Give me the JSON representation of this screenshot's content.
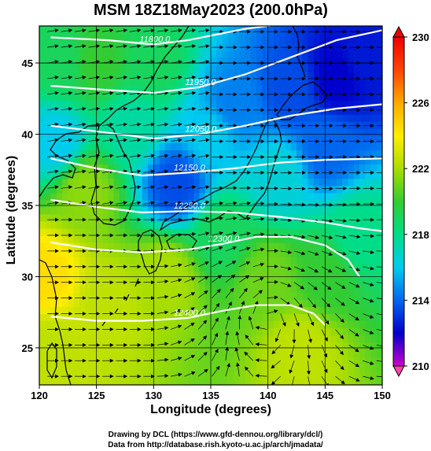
{
  "title": "MSM 18Z18May2023 (200.0hPa)",
  "xlabel": "Longitude (degrees)",
  "ylabel": "Latitude  (degrees)",
  "credit_line1": "Drawing by DCL (https://www.gfd-dennou.org/library/dcl/)",
  "credit_line2": "Data from http://database.rish.kyoto-u.ac.jp/arch/jmadata/",
  "chart_data": {
    "type": "heatmap",
    "x_range": [
      120,
      150
    ],
    "y_range": [
      22.4,
      47.6
    ],
    "x_ticks": [
      120,
      125,
      130,
      135,
      140,
      145,
      150
    ],
    "y_ticks": [
      25,
      30,
      35,
      40,
      45
    ],
    "colorbar": {
      "min": 210,
      "max": 230,
      "ticks": [
        210,
        214,
        218,
        222,
        226,
        230
      ],
      "colors": [
        "#cc00cc",
        "#0000cc",
        "#0066ee",
        "#00ccee",
        "#00dd88",
        "#33cc33",
        "#aadd00",
        "#ffee00",
        "#ffaa00",
        "#ff4400",
        "#ee0000"
      ]
    },
    "contours": [
      {
        "label": "11800.0",
        "points": [
          [
            121,
            46.8
          ],
          [
            126,
            46.6
          ],
          [
            130,
            46.3
          ],
          [
            133,
            46.6
          ],
          [
            138,
            47.4
          ],
          [
            142,
            47.8
          ]
        ]
      },
      {
        "label": "11950.0",
        "points": [
          [
            121,
            43.4
          ],
          [
            126,
            43.1
          ],
          [
            130,
            42.9
          ],
          [
            134,
            43.3
          ],
          [
            138,
            44.2
          ],
          [
            142,
            45.4
          ],
          [
            146,
            46.6
          ],
          [
            150,
            47.3
          ]
        ]
      },
      {
        "label": "12050.0",
        "points": [
          [
            121,
            40.6
          ],
          [
            126,
            40.1
          ],
          [
            130,
            39.7
          ],
          [
            134,
            40.0
          ],
          [
            138,
            40.6
          ],
          [
            142,
            41.3
          ],
          [
            146,
            41.8
          ],
          [
            150,
            42.1
          ]
        ]
      },
      {
        "label": "12150.0",
        "points": [
          [
            121,
            38.3
          ],
          [
            125,
            37.6
          ],
          [
            129,
            37.1
          ],
          [
            133,
            37.3
          ],
          [
            137,
            37.6
          ],
          [
            141,
            38.0
          ],
          [
            145,
            38.2
          ],
          [
            150,
            38.3
          ]
        ]
      },
      {
        "label": "12250.0",
        "points": [
          [
            121,
            35.4
          ],
          [
            125,
            34.9
          ],
          [
            129,
            34.5
          ],
          [
            133,
            34.6
          ],
          [
            137,
            34.5
          ],
          [
            141,
            34.2
          ],
          [
            145,
            33.8
          ],
          [
            148,
            33.4
          ],
          [
            150,
            33.2
          ]
        ]
      },
      {
        "label": "12300.0",
        "points": [
          [
            121,
            32.4
          ],
          [
            125,
            31.9
          ],
          [
            129,
            31.7
          ],
          [
            133,
            31.9
          ],
          [
            136,
            32.3
          ],
          [
            139,
            32.8
          ],
          [
            142,
            32.8
          ],
          [
            145,
            32.2
          ],
          [
            147,
            31.2
          ],
          [
            148,
            30.0
          ]
        ]
      },
      {
        "label": "12400.0",
        "points": [
          [
            121,
            27.2
          ],
          [
            125,
            26.9
          ],
          [
            129,
            26.9
          ],
          [
            133,
            27.1
          ],
          [
            136,
            27.6
          ],
          [
            139,
            28.0
          ],
          [
            142,
            28.0
          ],
          [
            144,
            27.4
          ],
          [
            145,
            26.6
          ]
        ]
      }
    ],
    "temperature_anchors": [
      {
        "lon": 120.5,
        "lat": 30.0,
        "t": 224.5
      },
      {
        "lon": 121.0,
        "lat": 25.0,
        "t": 222.5
      },
      {
        "lon": 122.0,
        "lat": 45.0,
        "t": 219.0
      },
      {
        "lon": 125.0,
        "lat": 45.0,
        "t": 220.0
      },
      {
        "lon": 121.5,
        "lat": 39.5,
        "t": 216.0
      },
      {
        "lon": 124.0,
        "lat": 36.0,
        "t": 221.5
      },
      {
        "lon": 126.0,
        "lat": 28.0,
        "t": 222.5
      },
      {
        "lon": 132.0,
        "lat": 36.5,
        "t": 213.5
      },
      {
        "lon": 135.0,
        "lat": 40.0,
        "t": 216.0
      },
      {
        "lon": 137.0,
        "lat": 42.0,
        "t": 214.5
      },
      {
        "lon": 142.0,
        "lat": 43.0,
        "t": 213.5
      },
      {
        "lon": 146.0,
        "lat": 44.0,
        "t": 212.0
      },
      {
        "lon": 148.5,
        "lat": 45.5,
        "t": 212.5
      },
      {
        "lon": 145.0,
        "lat": 39.0,
        "t": 214.0
      },
      {
        "lon": 141.0,
        "lat": 37.0,
        "t": 216.5
      },
      {
        "lon": 136.0,
        "lat": 33.0,
        "t": 219.0
      },
      {
        "lon": 140.0,
        "lat": 30.0,
        "t": 221.0
      },
      {
        "lon": 145.0,
        "lat": 30.0,
        "t": 220.0
      },
      {
        "lon": 148.0,
        "lat": 33.0,
        "t": 218.0
      },
      {
        "lon": 143.0,
        "lat": 25.0,
        "t": 222.5
      },
      {
        "lon": 131.0,
        "lat": 30.0,
        "t": 222.0
      },
      {
        "lon": 130.0,
        "lat": 45.0,
        "t": 219.0
      },
      {
        "lon": 128.0,
        "lat": 40.5,
        "t": 217.5
      }
    ],
    "grid": true,
    "colorbar_position": "right"
  }
}
